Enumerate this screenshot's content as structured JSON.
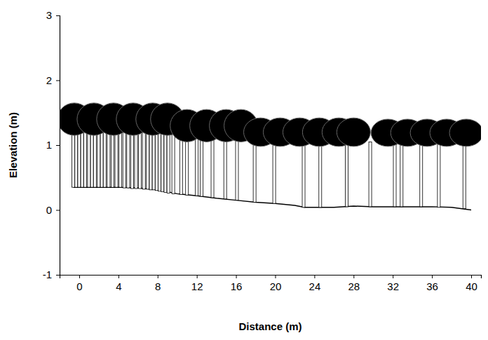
{
  "chart_data": {
    "type": "profile",
    "x_label": "Distance (m)",
    "y_label": "Elevation (m)",
    "xlim": [
      -2,
      41
    ],
    "xticks": [
      0,
      4,
      8,
      12,
      16,
      20,
      24,
      28,
      32,
      36,
      40
    ],
    "ylim": [
      -1,
      3
    ],
    "yticks": [
      -1,
      0,
      1,
      2,
      3
    ],
    "color": "#000000",
    "ground": {
      "x": [
        -0.6,
        2,
        4,
        6,
        8,
        10,
        12,
        14,
        16,
        18,
        20,
        22,
        23,
        24,
        26,
        28,
        30,
        32,
        34,
        36,
        38,
        40
      ],
      "values": [
        0.35,
        0.35,
        0.35,
        0.34,
        0.31,
        0.25,
        0.22,
        0.18,
        0.15,
        0.12,
        0.1,
        0.07,
        0.04,
        0.04,
        0.04,
        0.06,
        0.05,
        0.05,
        0.05,
        0.05,
        0.04,
        0.0
      ]
    },
    "stems": {
      "x": [
        -0.6,
        -0.3,
        0,
        0.3,
        0.6,
        1,
        1.3,
        1.6,
        2,
        2.3,
        2.6,
        3,
        3.4,
        3.8,
        4.2,
        4.6,
        5,
        5.4,
        5.8,
        6.2,
        6.6,
        7,
        7.3,
        7.6,
        7.9,
        8.2,
        8.5,
        8.8,
        9.1,
        9.6,
        10.4,
        11,
        12,
        12.5,
        13.6,
        14.9,
        16.1,
        17.9,
        19.9,
        22.9,
        24.6,
        27.3,
        29.7,
        32.2,
        32.9,
        34.9,
        36.7,
        39.3
      ],
      "base": [
        0.35,
        0.35,
        0.35,
        0.35,
        0.35,
        0.35,
        0.35,
        0.35,
        0.35,
        0.35,
        0.35,
        0.35,
        0.35,
        0.35,
        0.35,
        0.34,
        0.34,
        0.33,
        0.33,
        0.33,
        0.32,
        0.32,
        0.31,
        0.31,
        0.3,
        0.29,
        0.28,
        0.27,
        0.26,
        0.25,
        0.24,
        0.23,
        0.22,
        0.21,
        0.19,
        0.17,
        0.15,
        0.12,
        0.1,
        0.04,
        0.04,
        0.05,
        0.05,
        0.05,
        0.05,
        0.05,
        0.04,
        0.02
      ],
      "top": [
        1.25,
        1.25,
        1.25,
        1.25,
        1.25,
        1.25,
        1.25,
        1.25,
        1.25,
        1.25,
        1.25,
        1.25,
        1.25,
        1.25,
        1.25,
        1.25,
        1.25,
        1.25,
        1.25,
        1.25,
        1.25,
        1.25,
        1.25,
        1.25,
        1.25,
        1.25,
        1.25,
        1.25,
        1.25,
        1.25,
        1.15,
        1.15,
        1.15,
        1.15,
        1.15,
        1.15,
        1.15,
        1.05,
        1.05,
        1.05,
        1.05,
        1.05,
        1.05,
        1.05,
        1.05,
        1.05,
        1.05,
        1.05
      ]
    },
    "crowns": {
      "x": [
        -0.5,
        1.5,
        3.5,
        5.5,
        7.5,
        9,
        11,
        13,
        15,
        16.5,
        18.5,
        20.5,
        22.5,
        24.5,
        26.5,
        28,
        31.5,
        33.5,
        35.5,
        37.5,
        39.5
      ],
      "bottom": [
        1.15,
        1.15,
        1.15,
        1.15,
        1.15,
        1.15,
        1.05,
        1.05,
        1.05,
        1.05,
        0.98,
        0.98,
        0.98,
        0.98,
        0.98,
        0.98,
        0.98,
        0.98,
        0.98,
        0.98,
        0.98
      ],
      "top": [
        1.65,
        1.65,
        1.65,
        1.65,
        1.65,
        1.65,
        1.55,
        1.55,
        1.55,
        1.55,
        1.42,
        1.42,
        1.42,
        1.42,
        1.42,
        1.42,
        1.4,
        1.4,
        1.4,
        1.4,
        1.4
      ]
    }
  }
}
